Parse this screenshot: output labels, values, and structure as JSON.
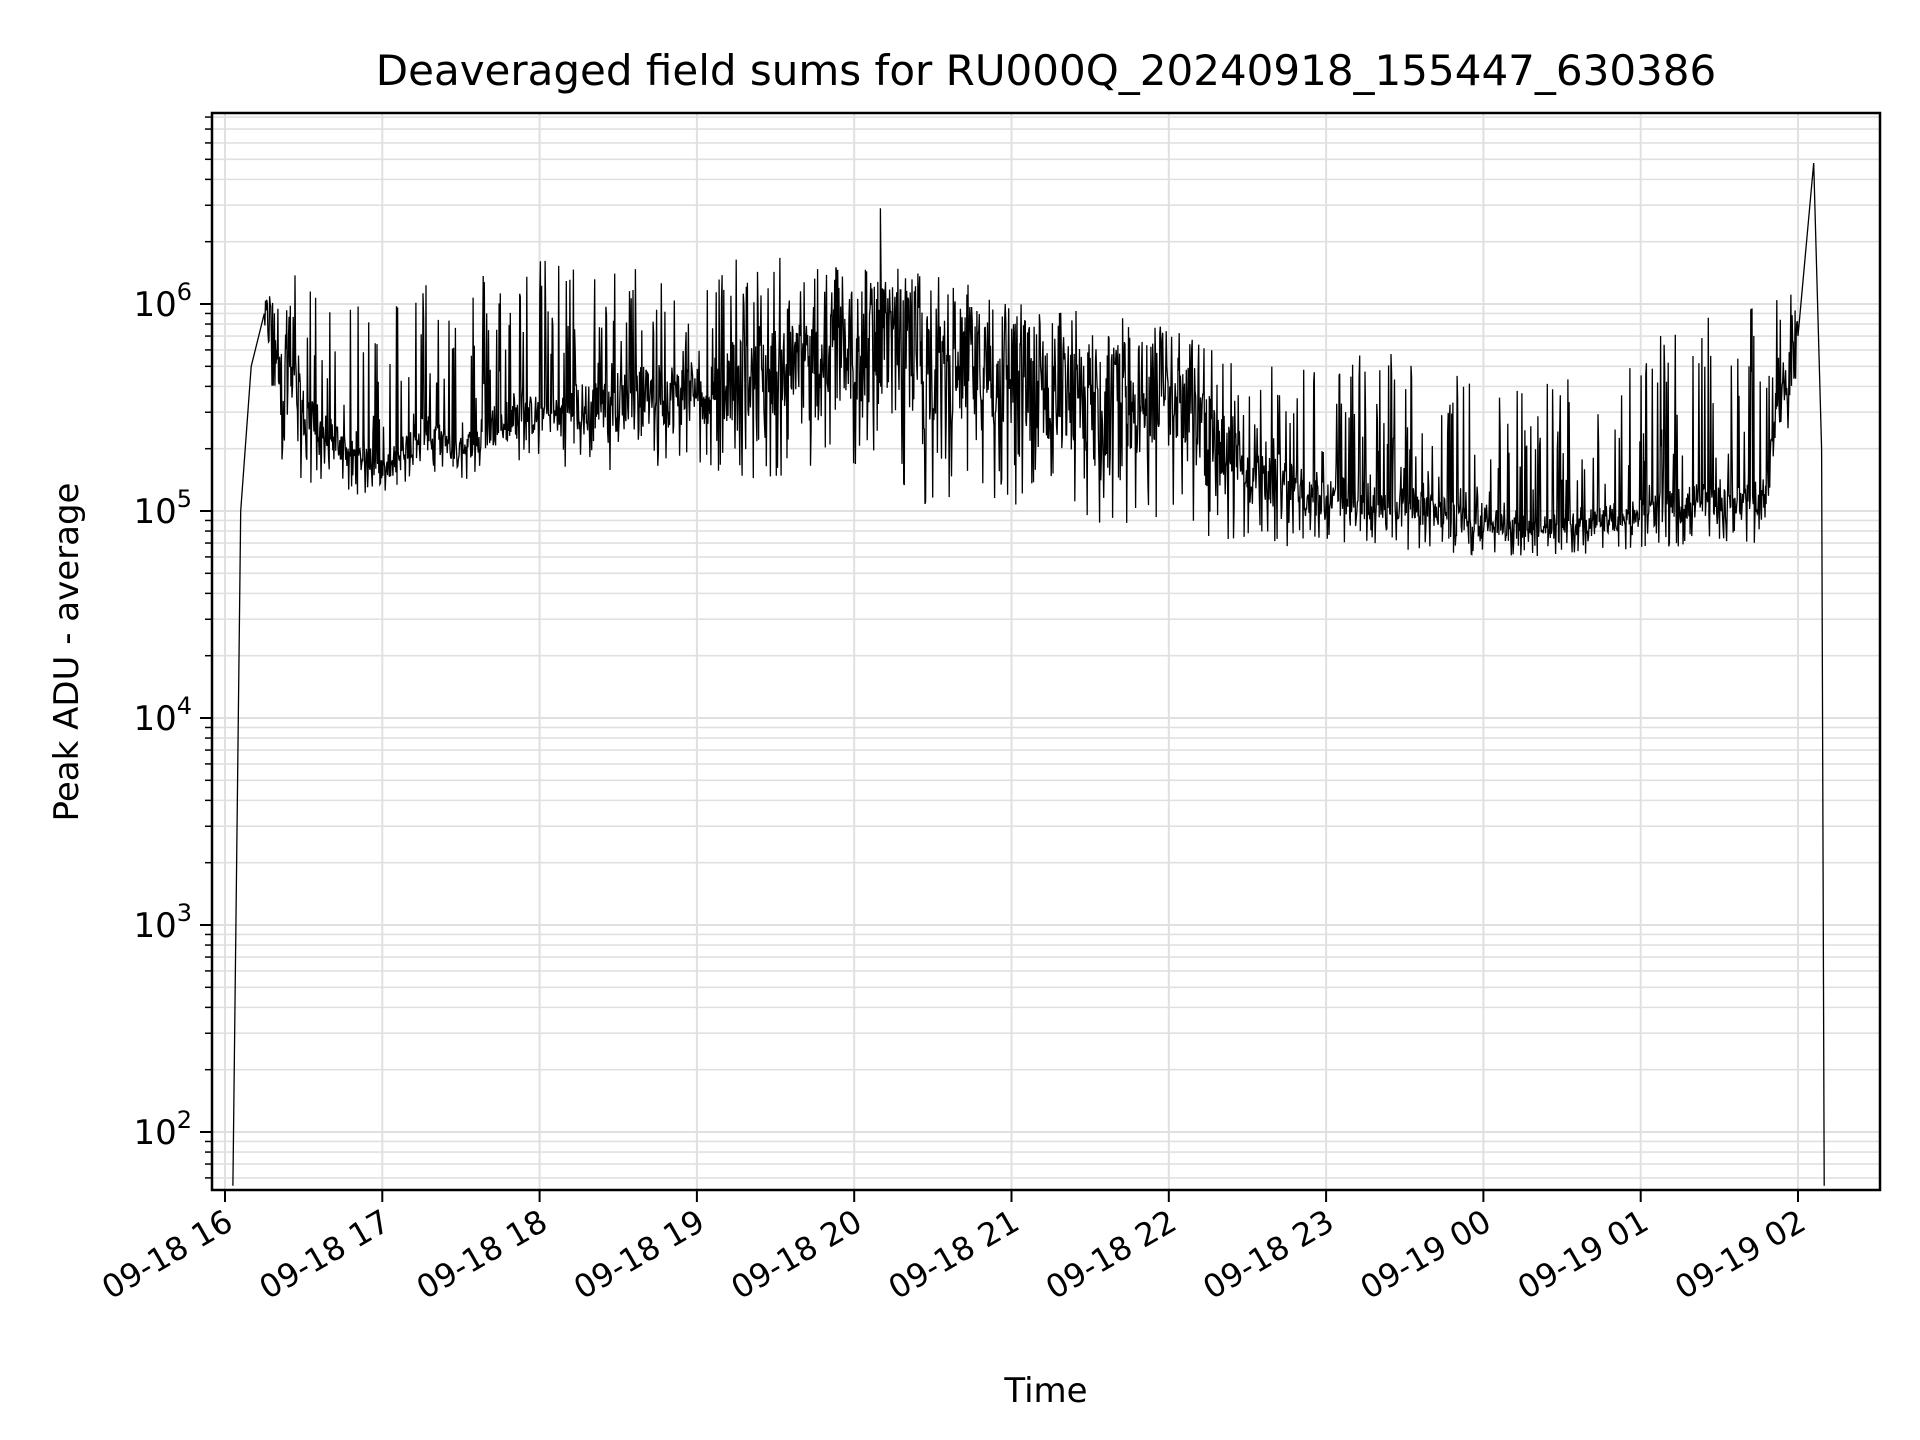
{
  "chart_data": {
    "type": "line",
    "title": "Deaveraged field sums for RU000Q_20240918_155447_630386",
    "xlabel": "Time",
    "ylabel": "Peak ADU - average",
    "yscale": "log",
    "ylim": [
      55,
      8000000
    ],
    "xlim": [
      "2024-09-18 15:55",
      "2024-09-19 02:30"
    ],
    "grid": true,
    "line_color": "#000000",
    "grid_color": "#e0e0e0",
    "y_ticks": [
      {
        "value": 100,
        "base": "10",
        "exp": "2"
      },
      {
        "value": 1000,
        "base": "10",
        "exp": "3"
      },
      {
        "value": 10000,
        "base": "10",
        "exp": "4"
      },
      {
        "value": 100000,
        "base": "10",
        "exp": "5"
      },
      {
        "value": 1000000,
        "base": "10",
        "exp": "6"
      }
    ],
    "x_ticks": [
      {
        "value": "2024-09-18 16:00",
        "label": "09-18 16"
      },
      {
        "value": "2024-09-18 17:00",
        "label": "09-18 17"
      },
      {
        "value": "2024-09-18 18:00",
        "label": "09-18 18"
      },
      {
        "value": "2024-09-18 19:00",
        "label": "09-18 19"
      },
      {
        "value": "2024-09-18 20:00",
        "label": "09-18 20"
      },
      {
        "value": "2024-09-18 21:00",
        "label": "09-18 21"
      },
      {
        "value": "2024-09-18 22:00",
        "label": "09-18 22"
      },
      {
        "value": "2024-09-18 23:00",
        "label": "09-18 23"
      },
      {
        "value": "2024-09-19 00:00",
        "label": "09-19 00"
      },
      {
        "value": "2024-09-19 01:00",
        "label": "09-19 01"
      },
      {
        "value": "2024-09-19 02:00",
        "label": "09-19 02"
      }
    ],
    "series": [
      {
        "x": [
          "2024-09-18 16:03",
          "2024-09-18 16:06",
          "2024-09-18 16:10",
          "2024-09-18 16:15",
          "2024-09-18 16:20",
          "2024-09-18 16:30",
          "2024-09-18 16:45",
          "2024-09-18 17:00",
          "2024-09-18 17:15",
          "2024-09-18 17:30",
          "2024-09-18 17:45",
          "2024-09-18 18:00",
          "2024-09-18 18:30",
          "2024-09-18 19:00",
          "2024-09-18 19:30",
          "2024-09-18 20:00",
          "2024-09-18 20:10",
          "2024-09-18 20:30",
          "2024-09-18 21:00",
          "2024-09-18 21:30",
          "2024-09-18 22:00",
          "2024-09-18 22:30",
          "2024-09-18 23:00",
          "2024-09-18 23:30",
          "2024-09-19 00:00",
          "2024-09-19 00:30",
          "2024-09-19 01:00",
          "2024-09-19 01:30",
          "2024-09-19 01:45",
          "2024-09-19 02:00",
          "2024-09-19 02:06",
          "2024-09-19 02:09",
          "2024-09-19 02:10"
        ],
        "y": [
          55,
          100000,
          500000,
          900000,
          700000,
          300000,
          200000,
          160000,
          250000,
          200000,
          280000,
          300000,
          350000,
          400000,
          500000,
          600000,
          2900000,
          550000,
          500000,
          350000,
          400000,
          150000,
          120000,
          110000,
          90000,
          85000,
          100000,
          120000,
          110000,
          700000,
          4800000,
          200000,
          55
        ],
        "center": [
          null,
          null,
          null,
          900000,
          700000,
          300000,
          200000,
          160000,
          250000,
          200000,
          280000,
          300000,
          350000,
          400000,
          500000,
          600000,
          700000,
          550000,
          500000,
          350000,
          400000,
          150000,
          120000,
          110000,
          90000,
          85000,
          100000,
          120000,
          110000,
          700000,
          null,
          null,
          null
        ],
        "upper": [
          null,
          null,
          null,
          1000000,
          1500000,
          1500000,
          900000,
          1200000,
          1600000,
          1600000,
          1600000,
          1700000,
          1600000,
          1600000,
          1700000,
          1700000,
          1600000,
          1400000,
          1100000,
          900000,
          800000,
          500000,
          550000,
          650000,
          400000,
          500000,
          650000,
          900000,
          1000000,
          1200000,
          null,
          null,
          null
        ],
        "lower": [
          null,
          null,
          null,
          500000,
          180000,
          140000,
          120000,
          120000,
          150000,
          140000,
          150000,
          170000,
          150000,
          150000,
          140000,
          150000,
          120000,
          100000,
          90000,
          80000,
          75000,
          70000,
          65000,
          65000,
          60000,
          60000,
          65000,
          70000,
          70000,
          350000,
          null,
          null,
          null
        ]
      }
    ]
  }
}
